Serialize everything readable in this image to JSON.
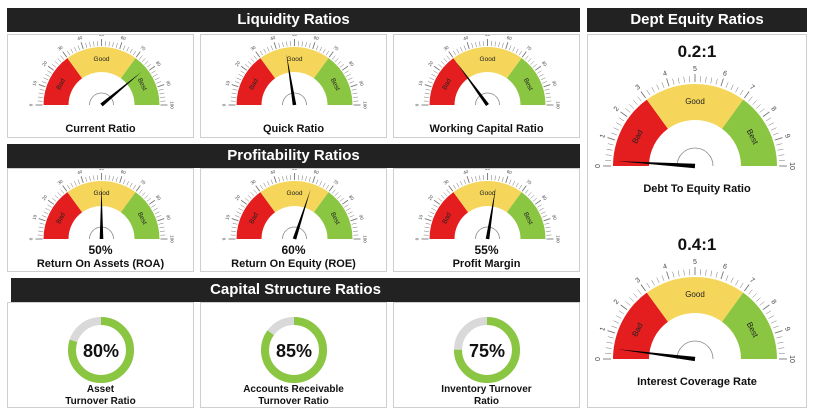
{
  "colors": {
    "bad": "#e41e1e",
    "good": "#f5d65a",
    "best": "#8ac641",
    "header_bg": "#222222",
    "donut": "#8ac641",
    "track": "#d9d9d9",
    "needle": "#000000"
  },
  "zone_labels": {
    "bad": "Bad",
    "good": "Good",
    "best": "Best"
  },
  "liquidity": {
    "title": "Liquidity Ratios",
    "gauges": [
      {
        "label": "Current Ratio",
        "value": 78
      },
      {
        "label": "Quick Ratio",
        "value": 45
      },
      {
        "label": "Working Capital Ratio",
        "value": 30
      }
    ]
  },
  "profitability": {
    "title": "Profitability Ratios",
    "gauges": [
      {
        "label": "Return On Assets (ROA)",
        "value": 50,
        "pct": "50%"
      },
      {
        "label": "Return On Equity (ROE)",
        "value": 60,
        "pct": "60%"
      },
      {
        "label": "Profit Margin",
        "value": 55,
        "pct": "55%"
      }
    ]
  },
  "capital": {
    "title": "Capital Structure Ratios",
    "donuts": [
      {
        "label": "Asset Turnover Ratio",
        "value": 80,
        "pct": "80%"
      },
      {
        "label": "Accounts Receivable Turnover Ratio",
        "value": 85,
        "pct": "85%"
      },
      {
        "label": "Inventory Turnover Ratio",
        "value": 75,
        "pct": "75%"
      }
    ]
  },
  "debt_equity": {
    "title": "Dept Equity Ratios",
    "gauges": [
      {
        "label": "Debt To Equity Ratio",
        "ratio": "0.2:1",
        "value": 0.2
      },
      {
        "label": "Interest Coverage Rate",
        "ratio": "0.4:1",
        "value": 0.4
      }
    ]
  }
}
